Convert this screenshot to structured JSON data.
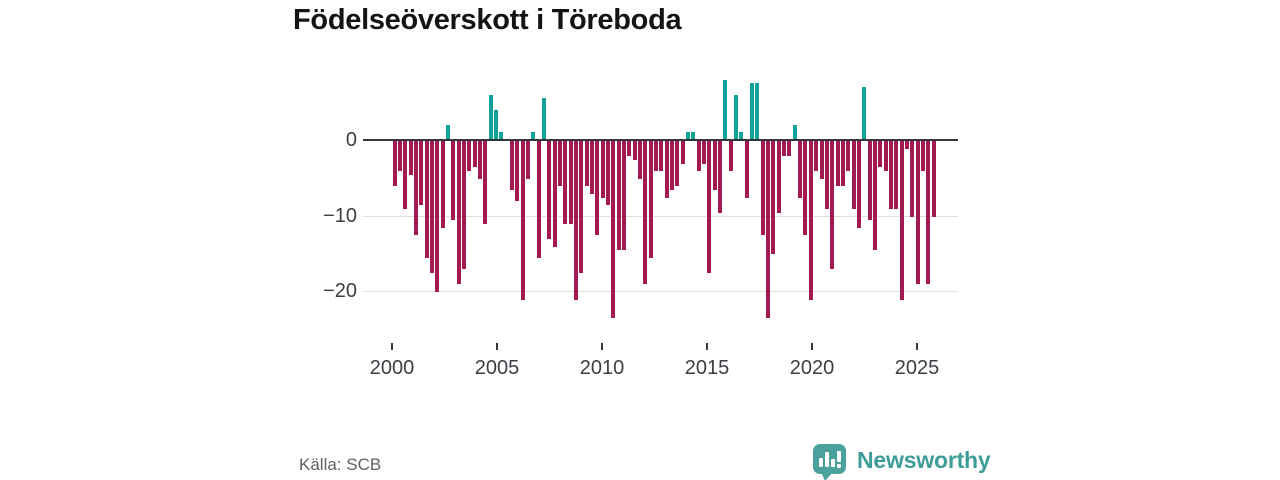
{
  "title": "Födelseöverskott i Töreboda",
  "source": "Källa: SCB",
  "brand": {
    "name": "Newsworthy"
  },
  "colors": {
    "negative_bar": "#a31952",
    "positive_bar": "#13a29a",
    "zero_line": "#33373b",
    "gridline": "#e0e0e0",
    "axis_text": "#3b3f44",
    "title_text": "#141414",
    "source_text": "#5c6166",
    "brand_teal": "#3e9d98",
    "logo_fill": "#4ba29c"
  },
  "chart_data": {
    "type": "bar",
    "title": "Födelseöverskott i Töreboda",
    "xlabel": "",
    "ylabel": "",
    "frequency": "quarterly",
    "x_start": "2000-Q1",
    "x_end": "2025-Q2",
    "ylim": [
      -25,
      9
    ],
    "grid": "horizontal",
    "y_ticks": [
      {
        "label": "0",
        "value": 0
      },
      {
        "label": "−10",
        "value": -10
      },
      {
        "label": "−20",
        "value": -20
      }
    ],
    "x_ticks": [
      {
        "label": "2000",
        "year": 2000
      },
      {
        "label": "2005",
        "year": 2005
      },
      {
        "label": "2010",
        "year": 2010
      },
      {
        "label": "2015",
        "year": 2015
      },
      {
        "label": "2020",
        "year": 2020
      },
      {
        "label": "2025",
        "year": 2025
      }
    ],
    "values": [
      -6,
      -4,
      -9,
      -4.5,
      -12.5,
      -8.5,
      -15.5,
      -17.5,
      -20,
      -11.5,
      2,
      -10.5,
      -19,
      -17,
      -4,
      -3.5,
      -5,
      -11,
      6,
      4,
      1,
      0,
      -6.5,
      -8,
      -21,
      -5,
      1,
      -15.5,
      5.5,
      -13,
      -14,
      -6,
      -11,
      -11,
      -21,
      -17.5,
      -6,
      -7,
      -12.5,
      -7.5,
      -8.5,
      -23.5,
      -14.5,
      -14.5,
      -2,
      -2.5,
      -5,
      -19,
      -15.5,
      -4,
      -4,
      -7.5,
      -6.5,
      -6,
      -3,
      1,
      1,
      -4,
      -3,
      -17.5,
      -6.5,
      -9.5,
      8,
      -4,
      6,
      1,
      -7.5,
      7.5,
      7.5,
      -12.5,
      -23.5,
      -15,
      -9.5,
      -2,
      -2,
      2,
      -7.5,
      -12.5,
      -21,
      -4,
      -5,
      -9,
      -17,
      -6,
      -6,
      -4,
      -9,
      -11.5,
      7,
      -10.5,
      -14.5,
      -3.5,
      -4,
      -9,
      -9,
      -21,
      -1,
      -10,
      -19,
      -4,
      -19,
      -10
    ]
  }
}
